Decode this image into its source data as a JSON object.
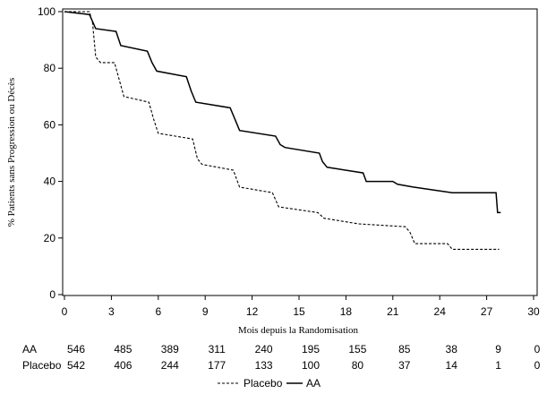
{
  "chart_data": {
    "type": "line",
    "title": "",
    "xlabel": "Mois depuis la Randomisation",
    "ylabel": "% Patients sans Progression ou Décès",
    "xlim": [
      0,
      30
    ],
    "ylim": [
      0,
      100
    ],
    "x_ticks": [
      0,
      3,
      6,
      9,
      12,
      15,
      18,
      21,
      24,
      27,
      30
    ],
    "y_ticks": [
      0,
      20,
      40,
      60,
      80,
      100
    ],
    "grid": false,
    "legend_position": "bottom",
    "series": [
      {
        "name": "Placebo",
        "style": "dashed",
        "color": "#000000",
        "points": [
          [
            0,
            100
          ],
          [
            1.6,
            100
          ],
          [
            1.8,
            96
          ],
          [
            2.0,
            84
          ],
          [
            2.3,
            82
          ],
          [
            3.2,
            82
          ],
          [
            3.5,
            76
          ],
          [
            3.8,
            70
          ],
          [
            5.4,
            68
          ],
          [
            5.7,
            62
          ],
          [
            6.0,
            57
          ],
          [
            8.2,
            55
          ],
          [
            8.5,
            48
          ],
          [
            8.8,
            46
          ],
          [
            10.8,
            44
          ],
          [
            11.2,
            38
          ],
          [
            13.3,
            36
          ],
          [
            13.7,
            31
          ],
          [
            16.2,
            29
          ],
          [
            16.6,
            27
          ],
          [
            18.8,
            25
          ],
          [
            21.8,
            24
          ],
          [
            22.1,
            22
          ],
          [
            22.4,
            18
          ],
          [
            24.5,
            18
          ],
          [
            24.8,
            16
          ],
          [
            27.8,
            16
          ]
        ]
      },
      {
        "name": "AA",
        "style": "solid",
        "color": "#000000",
        "points": [
          [
            0,
            100
          ],
          [
            1.6,
            99
          ],
          [
            2.0,
            94
          ],
          [
            3.3,
            93
          ],
          [
            3.6,
            88
          ],
          [
            5.3,
            86
          ],
          [
            5.6,
            82
          ],
          [
            5.9,
            79
          ],
          [
            7.8,
            77
          ],
          [
            8.1,
            72
          ],
          [
            8.4,
            68
          ],
          [
            10.6,
            66
          ],
          [
            10.9,
            62
          ],
          [
            11.2,
            58
          ],
          [
            13.5,
            56
          ],
          [
            13.8,
            53
          ],
          [
            14.1,
            52
          ],
          [
            16.3,
            50
          ],
          [
            16.5,
            47
          ],
          [
            16.8,
            45
          ],
          [
            19.1,
            43
          ],
          [
            19.3,
            40
          ],
          [
            21.0,
            40
          ],
          [
            21.3,
            39
          ],
          [
            22.3,
            38
          ],
          [
            24.8,
            36
          ],
          [
            27.6,
            36
          ],
          [
            27.7,
            29
          ],
          [
            27.9,
            29
          ]
        ]
      }
    ],
    "risk_table": {
      "times": [
        0,
        3,
        6,
        9,
        12,
        15,
        18,
        21,
        24,
        27,
        30
      ],
      "rows": [
        {
          "label": "AA",
          "counts": [
            "546",
            "485",
            "389",
            "311",
            "240",
            "195",
            "155",
            "85",
            "38",
            "9",
            "0"
          ]
        },
        {
          "label": "Placebo",
          "counts": [
            "542",
            "406",
            "244",
            "177",
            "133",
            "100",
            "80",
            "37",
            "14",
            "1",
            "0"
          ]
        }
      ]
    },
    "legend": [
      {
        "label": "Placebo",
        "style": "dashed"
      },
      {
        "label": "AA",
        "style": "solid"
      }
    ]
  }
}
